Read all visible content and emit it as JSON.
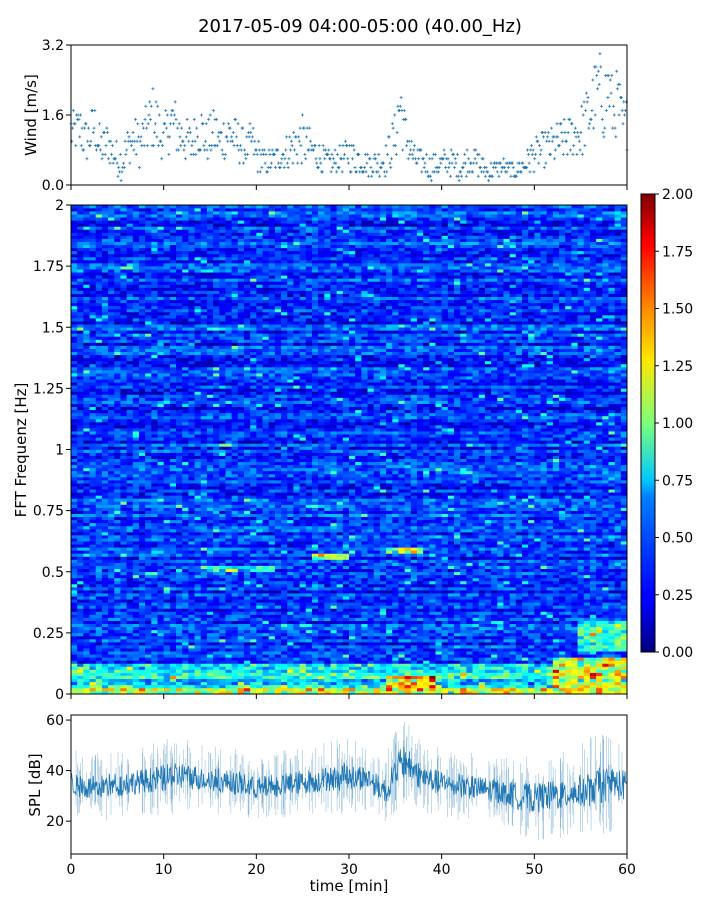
{
  "figure": {
    "title": "2017-05-09 04:00-05:00 (40.00_Hz)"
  },
  "chart_data": [
    {
      "type": "scatter",
      "name": "wind",
      "ylabel": "Wind [m/s]",
      "xlim": [
        0,
        60
      ],
      "ylim": [
        0,
        3.2
      ],
      "yticks": [
        0.0,
        1.6,
        3.2
      ],
      "yticklabels": [
        "0.0",
        "1.6",
        "3.2"
      ],
      "marker": "+",
      "color": "#1f77b4",
      "x": [
        0.5,
        1,
        1.5,
        2,
        2.5,
        3,
        3.5,
        4,
        4.5,
        5,
        5.5,
        6,
        6.5,
        7,
        7.5,
        8,
        8.5,
        9,
        9.5,
        10,
        10.5,
        11,
        11.5,
        12,
        12.5,
        13,
        13.5,
        14,
        14.5,
        15,
        15.5,
        16,
        16.5,
        17,
        17.5,
        18,
        18.5,
        19,
        19.5,
        20,
        21,
        22,
        23,
        24,
        25,
        26,
        27,
        28,
        29,
        30,
        31,
        32,
        33,
        34,
        35,
        35.5,
        36,
        37,
        38,
        39,
        40,
        41,
        42,
        43,
        44,
        45,
        46,
        47,
        48,
        49,
        50,
        51,
        52,
        53,
        54,
        55,
        55.5,
        56,
        56.5,
        57,
        57.5,
        58,
        58.5,
        59,
        59.5
      ],
      "y": [
        1.2,
        1.3,
        1.0,
        1.1,
        1.4,
        0.9,
        0.8,
        1.0,
        0.7,
        0.6,
        0.5,
        0.8,
        1.0,
        1.0,
        0.9,
        1.2,
        1.4,
        1.6,
        1.2,
        1.0,
        1.3,
        1.5,
        1.2,
        1.1,
        1.0,
        0.9,
        1.2,
        1.3,
        1.0,
        1.1,
        1.2,
        1.0,
        1.1,
        1.2,
        1.1,
        1.0,
        0.9,
        0.8,
        1.0,
        0.7,
        0.5,
        0.6,
        0.7,
        0.9,
        1.0,
        0.8,
        0.6,
        0.5,
        0.6,
        0.7,
        0.6,
        0.5,
        0.5,
        0.6,
        1.1,
        1.9,
        1.2,
        0.6,
        0.5,
        0.4,
        0.5,
        0.5,
        0.4,
        0.6,
        0.5,
        0.3,
        0.4,
        0.4,
        0.3,
        0.5,
        0.7,
        0.8,
        0.9,
        1.0,
        1.1,
        1.2,
        1.5,
        1.6,
        2.0,
        2.2,
        1.8,
        2.3,
        1.6,
        1.9,
        1.4
      ],
      "spread": [
        0.5,
        0.6,
        0.5,
        0.6,
        0.6,
        0.5,
        0.5,
        0.5,
        0.4,
        0.4,
        0.4,
        0.5,
        0.5,
        0.5,
        0.5,
        0.6,
        0.7,
        0.8,
        0.6,
        0.5,
        0.6,
        0.6,
        0.6,
        0.5,
        0.5,
        0.5,
        0.5,
        0.6,
        0.5,
        0.5,
        0.6,
        0.5,
        0.5,
        0.6,
        0.5,
        0.5,
        0.4,
        0.4,
        0.5,
        0.4,
        0.3,
        0.3,
        0.4,
        0.5,
        0.6,
        0.4,
        0.3,
        0.3,
        0.3,
        0.4,
        0.4,
        0.3,
        0.3,
        0.4,
        0.6,
        1.0,
        0.6,
        0.3,
        0.3,
        0.3,
        0.3,
        0.3,
        0.3,
        0.3,
        0.3,
        0.2,
        0.2,
        0.2,
        0.2,
        0.3,
        0.4,
        0.4,
        0.5,
        0.5,
        0.5,
        0.6,
        0.7,
        0.7,
        0.8,
        0.9,
        0.8,
        0.9,
        0.7,
        0.8,
        0.6
      ]
    },
    {
      "type": "heatmap",
      "name": "spectrogram",
      "ylabel": "FFT Frequenz [Hz]",
      "xlim": [
        0,
        60
      ],
      "ylim": [
        0,
        2
      ],
      "yticks": [
        0,
        0.25,
        0.5,
        0.75,
        1,
        1.25,
        1.5,
        1.75,
        2
      ],
      "yticklabels": [
        "0",
        "0.25",
        "0.5",
        "0.75",
        "1",
        "1.25",
        "1.5",
        "1.75",
        "2"
      ],
      "colormap": "jet",
      "clim": [
        0,
        2
      ],
      "base_level": 0.35,
      "features": [
        {
          "time": [
            0,
            60
          ],
          "freq": [
            0,
            0.03
          ],
          "level": 1.3
        },
        {
          "time": [
            0,
            60
          ],
          "freq": [
            0.03,
            0.12
          ],
          "level": 0.75
        },
        {
          "time": [
            26,
            30
          ],
          "freq": [
            0.55,
            0.57
          ],
          "level": 1.15
        },
        {
          "time": [
            34,
            38
          ],
          "freq": [
            0.58,
            0.6
          ],
          "level": 1.0
        },
        {
          "time": [
            34,
            39
          ],
          "freq": [
            0,
            0.08
          ],
          "level": 1.4
        },
        {
          "time": [
            52,
            60
          ],
          "freq": [
            0,
            0.15
          ],
          "level": 1.2
        },
        {
          "time": [
            55,
            60
          ],
          "freq": [
            0.18,
            0.3
          ],
          "level": 0.85
        },
        {
          "time": [
            14,
            22
          ],
          "freq": [
            0.5,
            0.53
          ],
          "level": 0.8
        }
      ]
    },
    {
      "type": "colorbar",
      "name": "colorbar",
      "colormap": "jet",
      "range": [
        0,
        2
      ],
      "ticks": [
        0,
        0.25,
        0.5,
        0.75,
        1,
        1.25,
        1.5,
        1.75,
        2
      ],
      "ticklabels": [
        "0.00",
        "0.25",
        "0.50",
        "0.75",
        "1.00",
        "1.25",
        "1.50",
        "1.75",
        "2.00"
      ]
    },
    {
      "type": "line",
      "name": "spl",
      "xlabel": "time [min]",
      "ylabel": "SPL [dB]",
      "xlim": [
        0,
        60
      ],
      "ylim": [
        7,
        62
      ],
      "yticks": [
        20,
        40,
        60
      ],
      "yticklabels": [
        "20",
        "40",
        "60"
      ],
      "xticks": [
        0,
        10,
        20,
        30,
        40,
        50,
        60
      ],
      "xticklabels": [
        "0",
        "10",
        "20",
        "30",
        "40",
        "50",
        "60"
      ],
      "color": "#1f77b4",
      "x": [
        0,
        2,
        4,
        6,
        8,
        10,
        12,
        14,
        16,
        18,
        20,
        22,
        24,
        26,
        28,
        30,
        32,
        33,
        34,
        35,
        36,
        37,
        38,
        40,
        42,
        44,
        46,
        48,
        50,
        52,
        54,
        56,
        58,
        60
      ],
      "y": [
        35,
        33,
        34,
        35,
        36,
        37,
        38,
        37,
        36,
        35,
        33,
        34,
        35,
        36,
        37,
        38,
        37,
        34,
        32,
        40,
        44,
        40,
        37,
        35,
        34,
        33,
        32,
        30,
        29,
        30,
        31,
        33,
        35,
        34
      ],
      "amplitude": [
        8,
        8,
        8,
        8,
        8,
        9,
        9,
        8,
        8,
        8,
        7,
        8,
        8,
        8,
        9,
        9,
        8,
        8,
        8,
        10,
        11,
        9,
        9,
        8,
        8,
        8,
        8,
        9,
        10,
        10,
        10,
        12,
        12,
        10
      ]
    }
  ]
}
